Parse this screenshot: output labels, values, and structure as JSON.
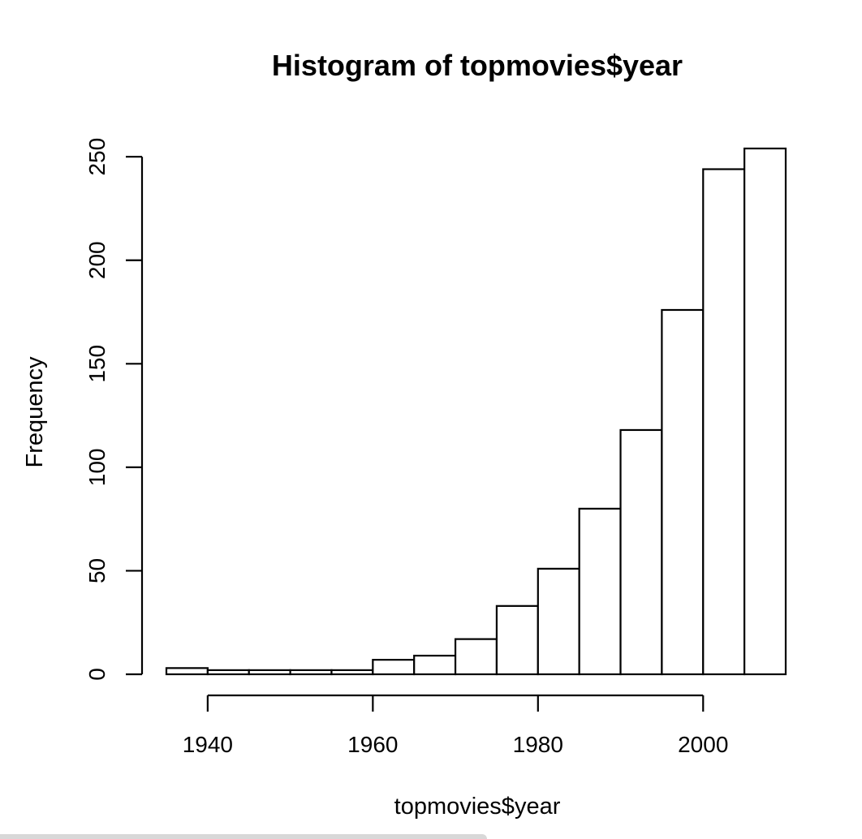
{
  "chart_data": {
    "type": "bar",
    "title": "Histogram of topmovies$year",
    "xlabel": "topmovies$year",
    "ylabel": "Frequency",
    "bins": [
      {
        "start": 1935,
        "end": 1940,
        "count": 3
      },
      {
        "start": 1940,
        "end": 1945,
        "count": 2
      },
      {
        "start": 1945,
        "end": 1950,
        "count": 2
      },
      {
        "start": 1950,
        "end": 1955,
        "count": 2
      },
      {
        "start": 1955,
        "end": 1960,
        "count": 2
      },
      {
        "start": 1960,
        "end": 1965,
        "count": 7
      },
      {
        "start": 1965,
        "end": 1970,
        "count": 9
      },
      {
        "start": 1970,
        "end": 1975,
        "count": 17
      },
      {
        "start": 1975,
        "end": 1980,
        "count": 33
      },
      {
        "start": 1980,
        "end": 1985,
        "count": 51
      },
      {
        "start": 1985,
        "end": 1990,
        "count": 80
      },
      {
        "start": 1990,
        "end": 1995,
        "count": 118
      },
      {
        "start": 1995,
        "end": 2000,
        "count": 176
      },
      {
        "start": 2000,
        "end": 2005,
        "count": 244
      },
      {
        "start": 2005,
        "end": 2010,
        "count": 254
      }
    ],
    "xlim": [
      1935,
      2010
    ],
    "ylim": [
      0,
      254
    ],
    "xticks": [
      1940,
      1960,
      1980,
      2000
    ],
    "yticks": [
      0,
      50,
      100,
      150,
      200,
      250
    ],
    "grid": false,
    "legend": "none"
  }
}
